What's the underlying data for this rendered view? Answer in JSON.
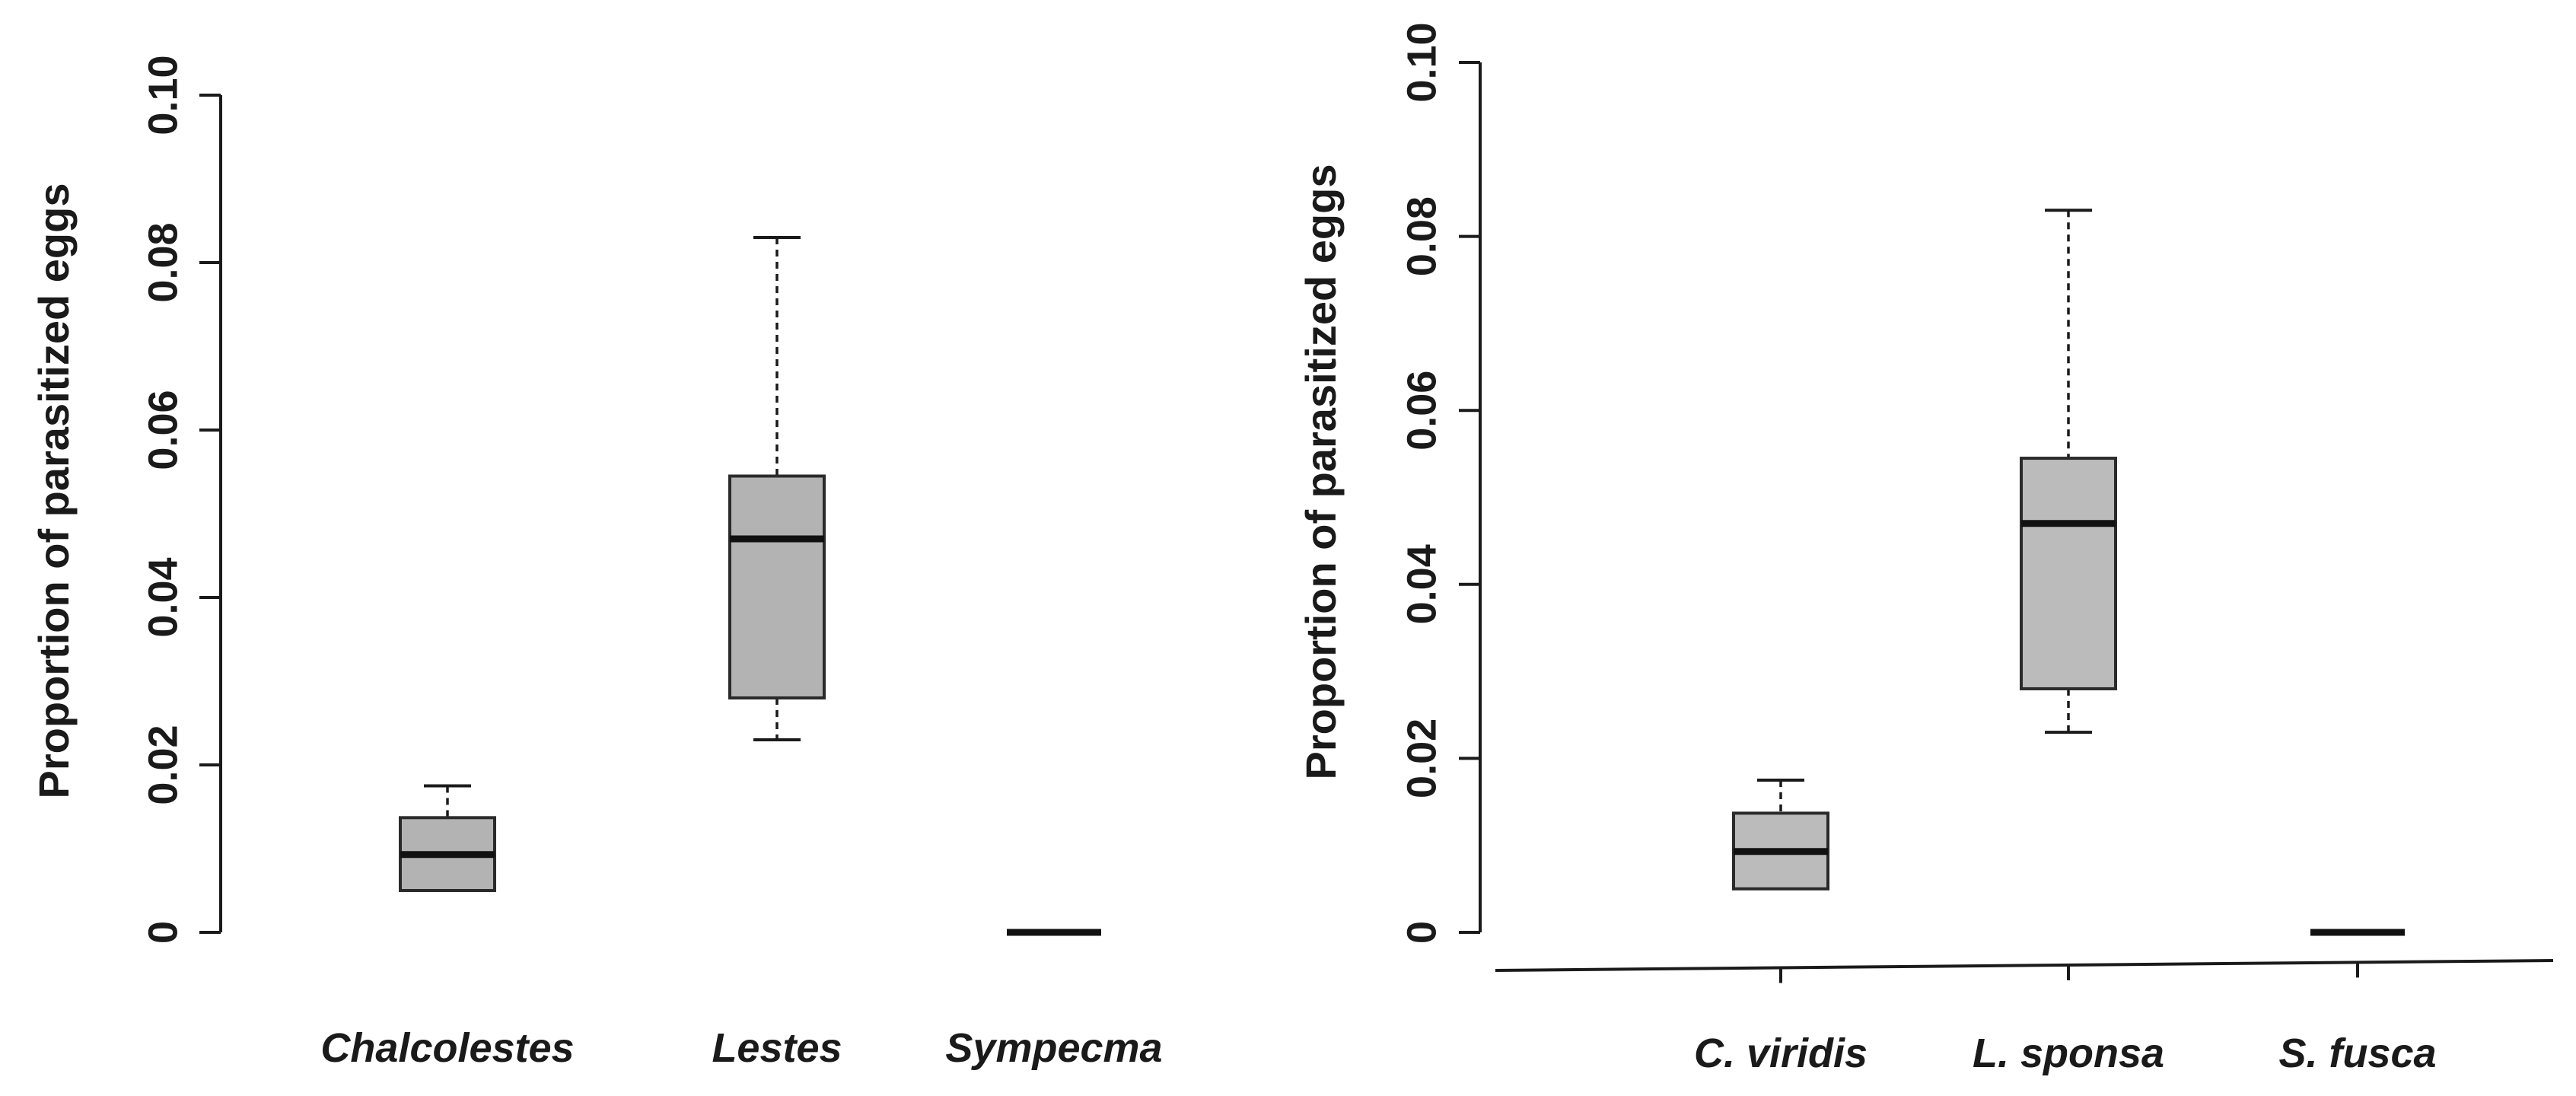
{
  "chart_data": [
    {
      "type": "box",
      "panel": "left",
      "title": "",
      "xlabel": "",
      "ylabel": "Proportion of parasitized eggs",
      "ylim": [
        0,
        0.1
      ],
      "yticks": [
        "0",
        "0.02",
        "0.04",
        "0.06",
        "0.08",
        "0.10"
      ],
      "ytick_values": [
        0,
        0.02,
        0.04,
        0.06,
        0.08,
        0.1
      ],
      "categories": [
        "Chalcolestes",
        "Lestes",
        "Sympecma"
      ],
      "boxes": [
        {
          "name": "Chalcolestes",
          "whisker_low": 0.005,
          "q1": 0.005,
          "median": 0.0093,
          "q3": 0.0137,
          "whisker_high": 0.0175
        },
        {
          "name": "Lestes",
          "whisker_low": 0.023,
          "q1": 0.028,
          "median": 0.047,
          "q3": 0.0545,
          "whisker_high": 0.083
        },
        {
          "name": "Sympecma",
          "whisker_low": 0,
          "q1": 0,
          "median": 0,
          "q3": 0,
          "whisker_high": 0
        }
      ],
      "box_color": "#b3b3b3",
      "grid": false
    },
    {
      "type": "box",
      "panel": "right",
      "title": "",
      "xlabel": "",
      "ylabel": "Proportion of parasitized eggs",
      "ylim": [
        0,
        0.1
      ],
      "yticks": [
        "0",
        "0.02",
        "0.04",
        "0.06",
        "0.08",
        "0.10"
      ],
      "ytick_values": [
        0,
        0.02,
        0.04,
        0.06,
        0.08,
        0.1
      ],
      "categories": [
        "C. viridis",
        "L. sponsa",
        "S. fusca"
      ],
      "boxes": [
        {
          "name": "C. viridis",
          "whisker_low": 0.005,
          "q1": 0.005,
          "median": 0.0093,
          "q3": 0.0137,
          "whisker_high": 0.0175
        },
        {
          "name": "L. sponsa",
          "whisker_low": 0.023,
          "q1": 0.028,
          "median": 0.047,
          "q3": 0.0545,
          "whisker_high": 0.083
        },
        {
          "name": "S. fusca",
          "whisker_low": 0,
          "q1": 0,
          "median": 0,
          "q3": 0,
          "whisker_high": 0
        }
      ],
      "box_color": "#bbbbbb",
      "grid": false
    }
  ]
}
